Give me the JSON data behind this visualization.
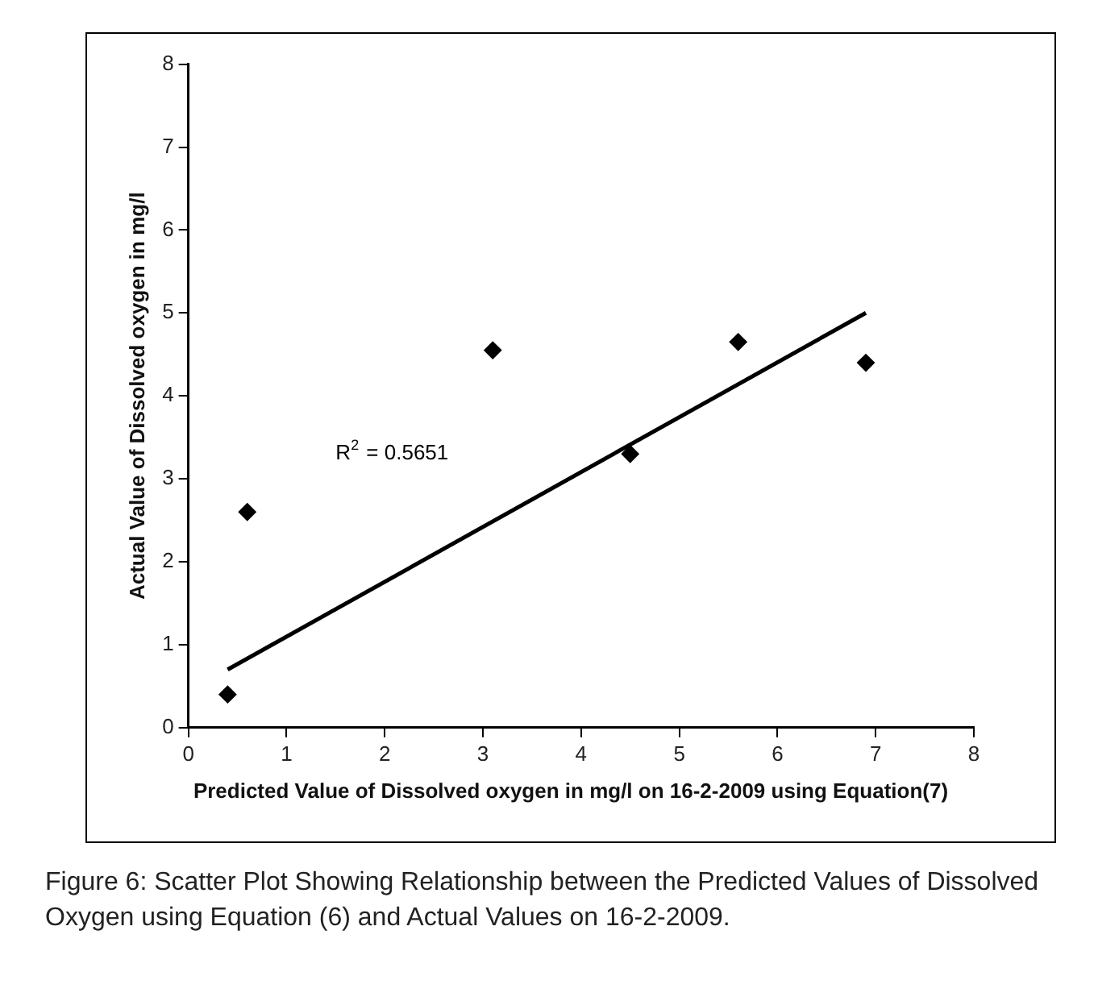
{
  "chart_data": {
    "type": "scatter",
    "xlabel": "Predicted Value of Dissolved oxygen in mg/l on 16-2-2009 using Equation(7)",
    "ylabel": "Actual Value of Dissolved oxygen in mg/l",
    "series": [
      {
        "color": "#000000",
        "marker": "diamond",
        "x": [
          0.4,
          0.6,
          3.1,
          4.5,
          5.6,
          6.9
        ],
        "values": [
          0.4,
          2.6,
          4.55,
          3.3,
          4.65,
          4.4
        ]
      },
      {
        "type": "line",
        "color": "#000000",
        "marker": "none",
        "x": [
          0.4,
          6.9
        ],
        "values": [
          0.7,
          5.0
        ]
      }
    ],
    "xlim": [
      0,
      8
    ],
    "xticks": [
      0,
      1,
      2,
      3,
      4,
      5,
      6,
      7,
      8
    ],
    "ylim": [
      0,
      8
    ],
    "yticks": [
      0,
      1,
      2,
      3,
      4,
      5,
      6,
      7,
      8
    ],
    "grid": false,
    "legend": false,
    "annotations": [
      "R$^{2}$ = 0.5651",
      "Figure 6: Scatter Plot Showing Relationship between the Predicted Values of Dissolved Oxygen using Equation (6) and Actual Values on 16-2-2009."
    ]
  }
}
